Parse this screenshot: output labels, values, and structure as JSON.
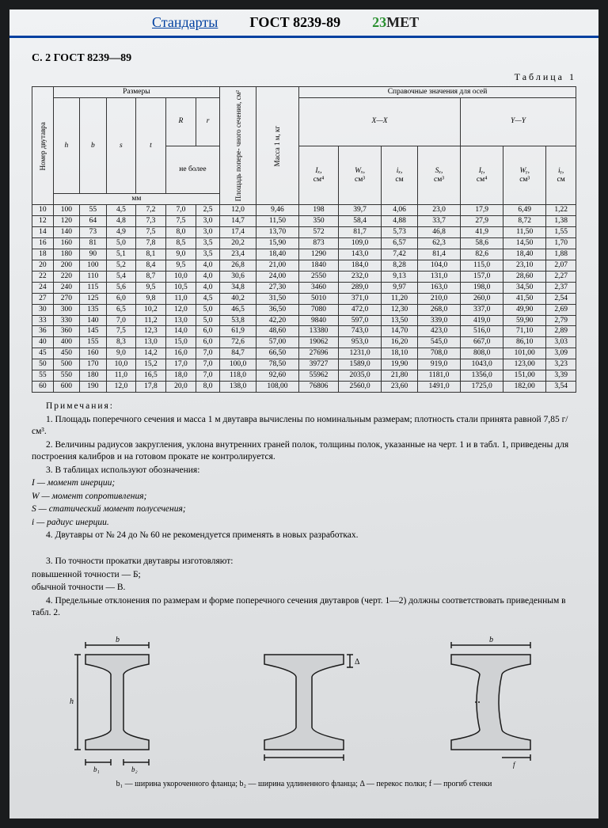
{
  "nav": {
    "standards_link": "Стандарты",
    "gost": "ГОСТ 8239-89",
    "brand1": "23",
    "brand2": "MET"
  },
  "page_header": "С. 2 ГОСТ 8239—89",
  "table_caption": "Таблица 1",
  "headers": {
    "col_num": "Номер двутавра",
    "group_dims": "Размеры",
    "h": "h",
    "b": "b",
    "s": "s",
    "t": "t",
    "R": "R",
    "r": "r",
    "ne_bolee": "не более",
    "mm": "мм",
    "area": "Площадь попере-\nчного сечения, см²",
    "mass": "Масса 1 м, кг",
    "group_ref": "Справочные значения для осей",
    "xx": "X—X",
    "yy": "Y—Y",
    "Ix": "Iₓ,",
    "Ix_u": "см⁴",
    "Wx": "Wₓ,",
    "Wx_u": "см³",
    "ix": "iₓ,",
    "ix_u": "см",
    "Sx": "Sₓ,",
    "Sx_u": "см³",
    "Iy": "Iᵧ,",
    "Iy_u": "см⁴",
    "Wy": "Wᵧ,",
    "Wy_u": "см³",
    "iy": "iᵧ,",
    "iy_u": "см"
  },
  "rows": [
    [
      "10",
      "100",
      "55",
      "4,5",
      "7,2",
      "7,0",
      "2,5",
      "12,0",
      "9,46",
      "198",
      "39,7",
      "4,06",
      "23,0",
      "17,9",
      "6,49",
      "1,22"
    ],
    [
      "12",
      "120",
      "64",
      "4,8",
      "7,3",
      "7,5",
      "3,0",
      "14,7",
      "11,50",
      "350",
      "58,4",
      "4,88",
      "33,7",
      "27,9",
      "8,72",
      "1,38"
    ],
    [
      "14",
      "140",
      "73",
      "4,9",
      "7,5",
      "8,0",
      "3,0",
      "17,4",
      "13,70",
      "572",
      "81,7",
      "5,73",
      "46,8",
      "41,9",
      "11,50",
      "1,55"
    ],
    [
      "16",
      "160",
      "81",
      "5,0",
      "7,8",
      "8,5",
      "3,5",
      "20,2",
      "15,90",
      "873",
      "109,0",
      "6,57",
      "62,3",
      "58,6",
      "14,50",
      "1,70"
    ],
    [
      "18",
      "180",
      "90",
      "5,1",
      "8,1",
      "9,0",
      "3,5",
      "23,4",
      "18,40",
      "1290",
      "143,0",
      "7,42",
      "81,4",
      "82,6",
      "18,40",
      "1,88"
    ],
    [
      "20",
      "200",
      "100",
      "5,2",
      "8,4",
      "9,5",
      "4,0",
      "26,8",
      "21,00",
      "1840",
      "184,0",
      "8,28",
      "104,0",
      "115,0",
      "23,10",
      "2,07"
    ],
    [
      "22",
      "220",
      "110",
      "5,4",
      "8,7",
      "10,0",
      "4,0",
      "30,6",
      "24,00",
      "2550",
      "232,0",
      "9,13",
      "131,0",
      "157,0",
      "28,60",
      "2,27"
    ],
    [
      "24",
      "240",
      "115",
      "5,6",
      "9,5",
      "10,5",
      "4,0",
      "34,8",
      "27,30",
      "3460",
      "289,0",
      "9,97",
      "163,0",
      "198,0",
      "34,50",
      "2,37"
    ],
    [
      "27",
      "270",
      "125",
      "6,0",
      "9,8",
      "11,0",
      "4,5",
      "40,2",
      "31,50",
      "5010",
      "371,0",
      "11,20",
      "210,0",
      "260,0",
      "41,50",
      "2,54"
    ],
    [
      "30",
      "300",
      "135",
      "6,5",
      "10,2",
      "12,0",
      "5,0",
      "46,5",
      "36,50",
      "7080",
      "472,0",
      "12,30",
      "268,0",
      "337,0",
      "49,90",
      "2,69"
    ],
    [
      "33",
      "330",
      "140",
      "7,0",
      "11,2",
      "13,0",
      "5,0",
      "53,8",
      "42,20",
      "9840",
      "597,0",
      "13,50",
      "339,0",
      "419,0",
      "59,90",
      "2,79"
    ],
    [
      "36",
      "360",
      "145",
      "7,5",
      "12,3",
      "14,0",
      "6,0",
      "61,9",
      "48,60",
      "13380",
      "743,0",
      "14,70",
      "423,0",
      "516,0",
      "71,10",
      "2,89"
    ],
    [
      "40",
      "400",
      "155",
      "8,3",
      "13,0",
      "15,0",
      "6,0",
      "72,6",
      "57,00",
      "19062",
      "953,0",
      "16,20",
      "545,0",
      "667,0",
      "86,10",
      "3,03"
    ],
    [
      "45",
      "450",
      "160",
      "9,0",
      "14,2",
      "16,0",
      "7,0",
      "84,7",
      "66,50",
      "27696",
      "1231,0",
      "18,10",
      "708,0",
      "808,0",
      "101,00",
      "3,09"
    ],
    [
      "50",
      "500",
      "170",
      "10,0",
      "15,2",
      "17,0",
      "7,0",
      "100,0",
      "78,50",
      "39727",
      "1589,0",
      "19,90",
      "919,0",
      "1043,0",
      "123,00",
      "3,23"
    ],
    [
      "55",
      "550",
      "180",
      "11,0",
      "16,5",
      "18,0",
      "7,0",
      "118,0",
      "92,60",
      "55962",
      "2035,0",
      "21,80",
      "1181,0",
      "1356,0",
      "151,00",
      "3,39"
    ],
    [
      "60",
      "600",
      "190",
      "12,0",
      "17,8",
      "20,0",
      "8,0",
      "138,0",
      "108,00",
      "76806",
      "2560,0",
      "23,60",
      "1491,0",
      "1725,0",
      "182,00",
      "3,54"
    ]
  ],
  "notes": {
    "hdr": "Примечания:",
    "n1": "1. Площадь поперечного сечения и масса 1 м двутавра вычислены по номинальным размерам; плотность стали принята равной 7,85 г/см³.",
    "n2": "2. Величины радиусов закругления, уклона внутренних граней полок, толщины полок, указанные на черт. 1 и в табл. 1, приведены для построения калибров и на готовом прокате не контролируется.",
    "n3": "3. В таблицах используют обозначения:",
    "d1": "I — момент инерции;",
    "d2": "W — момент сопротивления;",
    "d3": "S — статический момент полусечения;",
    "d4": "i — радиус инерции.",
    "n4": "4. Двутавры от № 24 до № 60 не рекомендуется применять в новых разработках.",
    "p3": "3. По точности прокатки двутавры изготовляют:",
    "p3a": "повышенной точности — Б;",
    "p3b": "обычной точности — В.",
    "p4": "4. Предельные отклонения по размерам и форме поперечного сечения двутавров (черт. 1—2) должны соответствовать приведенным в табл. 2."
  },
  "footer": "b₁ — ширина укороченного фланца; b₂ — ширина удлиненного фланца; Δ — перекос полки; f — прогиб стенки",
  "style": {
    "stroke": "#1a1a1a",
    "fill": "#c8cacc"
  }
}
